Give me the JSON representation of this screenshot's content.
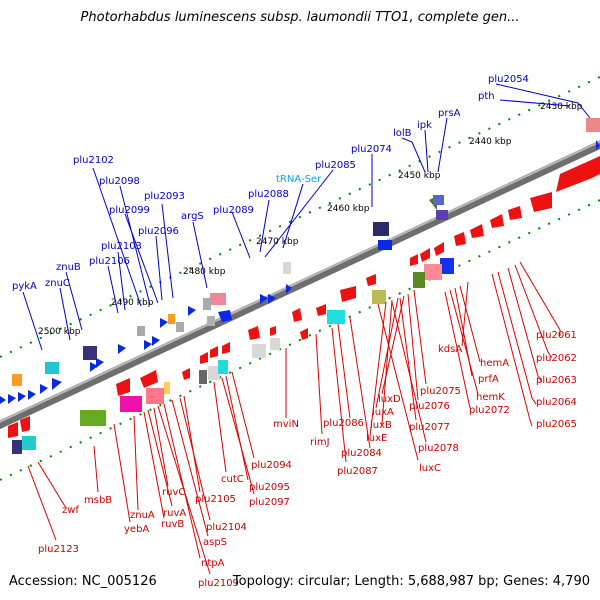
{
  "title": "Photorhabdus luminescens subsp. laumondii TTO1, complete gen...",
  "accession": "Accession: NC_005126",
  "topology": "Topology: circular; Length: 5,688,987 bp; Genes: 4,790",
  "colors": {
    "top_label": "#0000cc",
    "bottom_label": "#cc0000",
    "trna_label": "#00aadd",
    "backbone": "#8c8c8c",
    "tick": "#008800",
    "forward": "#0a28e6",
    "reverse": "#ee1111"
  },
  "kbp_ticks": [
    "2430 kbp",
    "2440 kbp",
    "2450 kbp",
    "2460 kbp",
    "2470 kbp",
    "2480 kbp",
    "2490 kbp",
    "2500 kbp"
  ],
  "top_labels": [
    "plu2054",
    "pth",
    "prsA",
    "lolB",
    "ipk",
    "plu2074",
    "plu2085",
    "tRNA-Ser",
    "plu2088",
    "plu2089",
    "argS",
    "plu2093",
    "plu2096",
    "plu2099",
    "plu2098",
    "plu2102",
    "plu2103",
    "plu2106",
    "znuB",
    "znuC",
    "pykA"
  ],
  "bottom_labels": [
    "plu2061",
    "plu2062",
    "plu2063",
    "plu2064",
    "plu2065",
    "kdsA",
    "hemA",
    "prfA",
    "hemK",
    "plu2072",
    "luxD",
    "luxA",
    "luxB",
    "luxE",
    "luxC",
    "plu2075",
    "plu2076",
    "plu2077",
    "plu2078",
    "plu2084",
    "plu2086",
    "plu2087",
    "rimJ",
    "mviN",
    "plu2094",
    "plu2095",
    "plu2097",
    "cutC",
    "plu2105",
    "plu2104",
    "aspS",
    "ntpA",
    "plu2109",
    "ruvC",
    "ruvA",
    "ruvB",
    "znuA",
    "yebA",
    "msbB",
    "zwf",
    "plu2123"
  ]
}
